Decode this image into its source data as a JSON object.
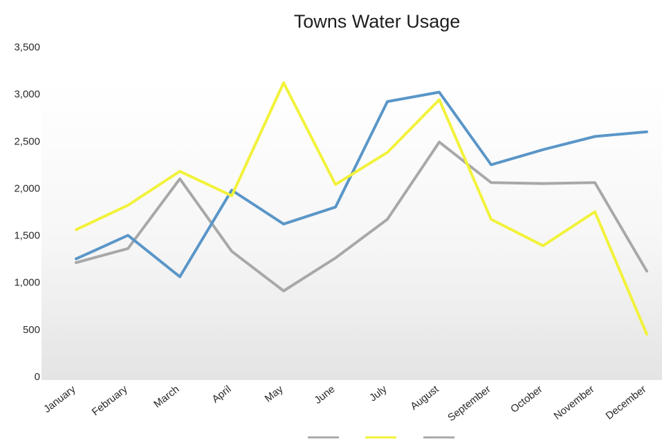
{
  "chart_data": {
    "type": "line",
    "title": "Towns Water Usage",
    "xlabel": "",
    "ylabel": "",
    "categories": [
      "January",
      "February",
      "March",
      "April",
      "May",
      "June",
      "July",
      "August",
      "September",
      "October",
      "November",
      "December"
    ],
    "y_ticks": [
      "0",
      "500",
      "1,000",
      "1,500",
      "2,000",
      "2,500",
      "3,000",
      "3,500"
    ],
    "ylim": [
      0,
      3500
    ],
    "grid": false,
    "legend": "bottom",
    "series": [
      {
        "color": "#5a96c8",
        "values": [
          1250,
          1500,
          1060,
          1980,
          1620,
          1800,
          2920,
          3020,
          2250,
          2410,
          2550,
          2600
        ]
      },
      {
        "color": "#f2f23a",
        "values": [
          1560,
          1820,
          2180,
          1920,
          3120,
          2040,
          2380,
          2940,
          1670,
          1390,
          1750,
          450
        ]
      },
      {
        "color": "#a8a8a8",
        "values": [
          1210,
          1360,
          2100,
          1330,
          910,
          1260,
          1670,
          2490,
          2060,
          2050,
          2060,
          1120
        ]
      }
    ]
  }
}
